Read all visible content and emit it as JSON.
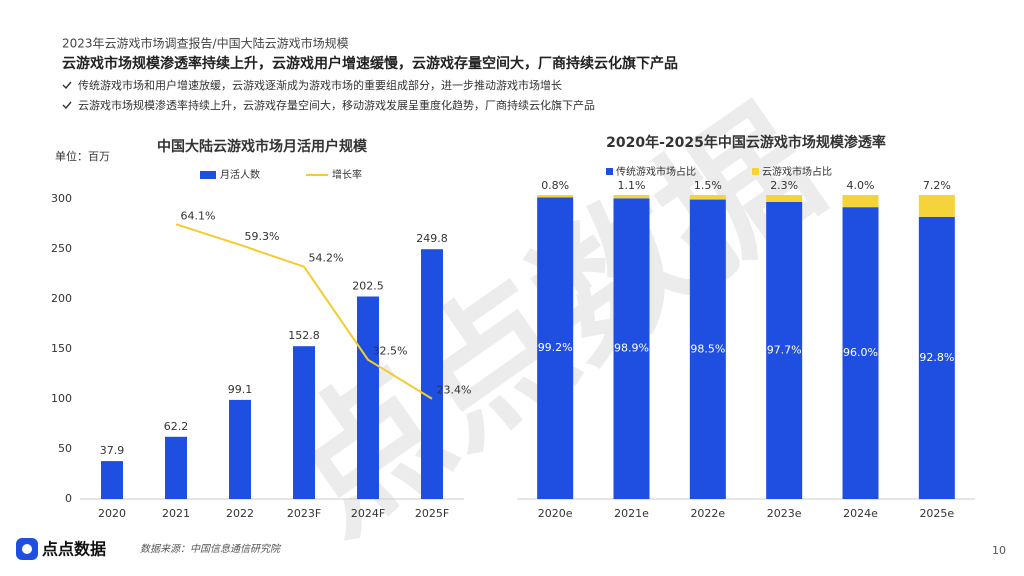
{
  "header": {
    "breadcrumb": "2023年云游戏市场调查报告/中国大陆云游戏市场规模",
    "title": "云游戏市场规模渗透率持续上升，云游戏用户增速缓慢，云游戏存量空间大，厂商持续云化旗下产品",
    "bullets": [
      "传统游戏市场和用户增速放缓，云游戏逐渐成为游戏市场的重要组成部分，进一步推动游戏市场增长",
      "云游戏市场规模渗透率持续上升，云游戏存量空间大，移动游戏发展呈重度化趋势，厂商持续云化旗下产品"
    ]
  },
  "chart_data": [
    {
      "type": "bar",
      "title": "中国大陆云游戏市场月活用户规模",
      "unit_label": "单位：百万",
      "categories": [
        "2020",
        "2021",
        "2022",
        "2023F",
        "2024F",
        "2025F"
      ],
      "series": [
        {
          "name": "月活人数",
          "color": "#1f4fe0",
          "values": [
            37.9,
            62.2,
            99.1,
            152.8,
            202.5,
            249.8
          ]
        },
        {
          "name": "增长率",
          "type": "line",
          "axis": "y2",
          "color": "#f2cc30",
          "values": [
            null,
            64.1,
            59.3,
            54.2,
            32.5,
            23.4
          ],
          "value_labels": [
            null,
            "64.1%",
            "59.3%",
            "54.2%",
            "32.5%",
            "23.4%"
          ]
        }
      ],
      "ylim": [
        0,
        300
      ],
      "yticks": [
        0,
        50,
        100,
        150,
        200,
        250,
        300
      ],
      "y2lim": [
        0,
        70
      ],
      "grid": false,
      "legend": "top"
    },
    {
      "type": "stacked_bar",
      "title": "2020年-2025年中国云游戏市场规模渗透率",
      "categories": [
        "2020e",
        "2021e",
        "2022e",
        "2023e",
        "2024e",
        "2025e"
      ],
      "series": [
        {
          "name": "传统游戏市场占比",
          "color": "#1f4fe0",
          "values": [
            99.2,
            98.9,
            98.5,
            97.7,
            96.0,
            92.8
          ],
          "value_labels": [
            "99.2%",
            "98.9%",
            "98.5%",
            "97.7%",
            "96.0%",
            "92.8%"
          ]
        },
        {
          "name": "云游戏市场占比",
          "color": "#f5d33a",
          "values": [
            0.8,
            1.1,
            1.5,
            2.3,
            4.0,
            7.2
          ],
          "value_labels": [
            "0.8%",
            "1.1%",
            "1.5%",
            "2.3%",
            "4.0%",
            "7.2%"
          ]
        }
      ],
      "ylim": [
        0,
        100
      ],
      "grid": false,
      "legend": "top"
    }
  ],
  "footer": {
    "source": "数据来源：中国信息通信研究院",
    "brand": "点点数据",
    "page": "10"
  }
}
